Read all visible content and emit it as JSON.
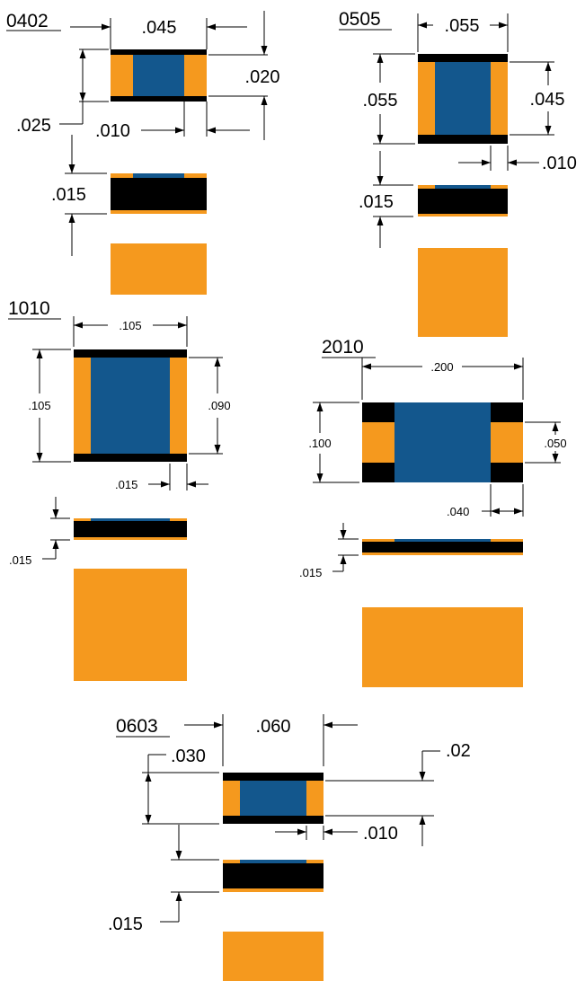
{
  "colors": {
    "pad": "#F5991E",
    "body": "#13578D",
    "coating": "#000000",
    "background": "#FFFFFF"
  },
  "parts": [
    {
      "size": "0402",
      "dims": {
        "length": ".045",
        "pad_height": ".020",
        "width": ".025",
        "pad_length": ".010",
        "thickness": ".015"
      }
    },
    {
      "size": "0505",
      "dims": {
        "length": ".055",
        "width": ".055",
        "pad_height": ".045",
        "pad_length": ".010",
        "thickness": ".015"
      }
    },
    {
      "size": "1010",
      "dims": {
        "length": ".105",
        "width": ".105",
        "pad_height": ".090",
        "pad_length": ".015",
        "thickness": ".015"
      }
    },
    {
      "size": "2010",
      "dims": {
        "length": ".200",
        "width": ".100",
        "pad_height": ".050",
        "pad_length": ".040",
        "thickness": ".015"
      }
    },
    {
      "size": "0603",
      "dims": {
        "length": ".060",
        "width": ".030",
        "pad_height": ".02",
        "pad_length": ".010",
        "thickness": ".015"
      }
    }
  ]
}
